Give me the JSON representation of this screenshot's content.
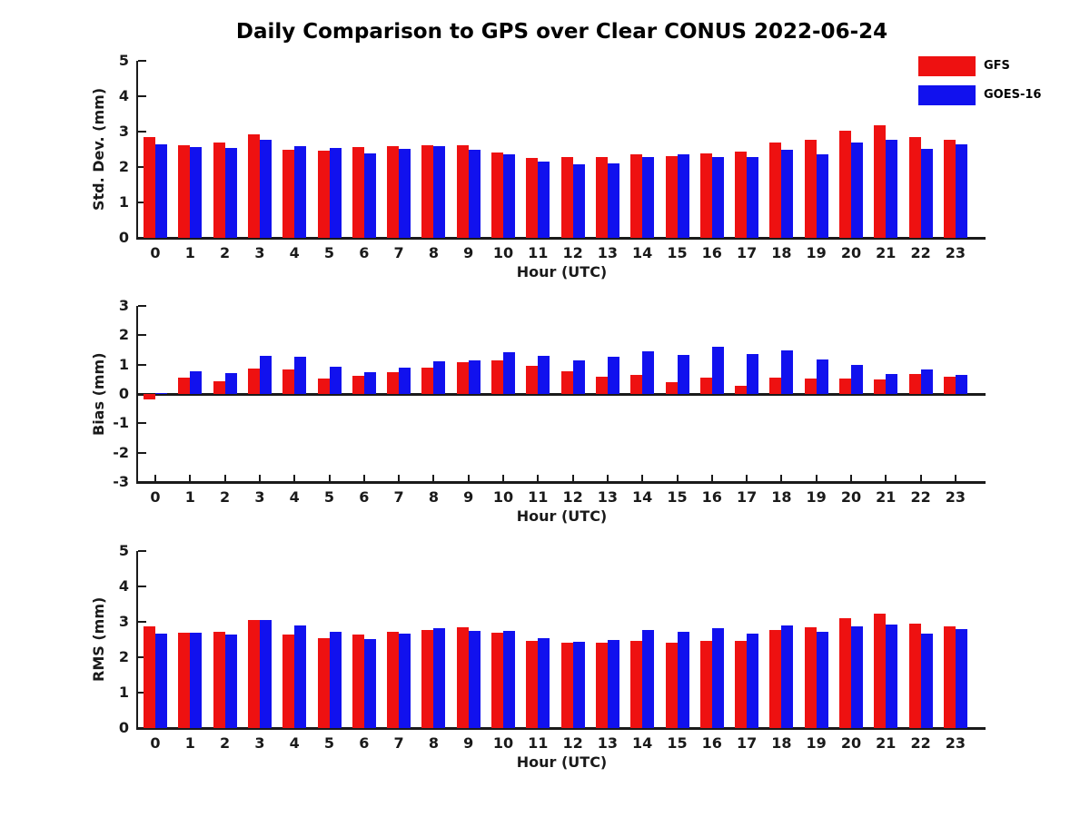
{
  "title": "Daily Comparison to GPS over Clear CONUS 2022-06-24",
  "colors": {
    "gfs": "#ee1111",
    "goes16": "#1111ee",
    "axis": "#1a1a1a"
  },
  "legend": [
    {
      "label": "GFS",
      "series": "gfs"
    },
    {
      "label": "GOES-16",
      "series": "goes16"
    }
  ],
  "chart_data": [
    {
      "type": "bar",
      "title": "",
      "ylabel": "Std. Dev. (mm)",
      "xlabel": "Hour (UTC)",
      "ylim": [
        0,
        5
      ],
      "yticks": [
        0,
        1,
        2,
        3,
        4,
        5
      ],
      "grid": false,
      "legend_position": "top-right",
      "categories": [
        "0",
        "1",
        "2",
        "3",
        "4",
        "5",
        "6",
        "7",
        "8",
        "9",
        "10",
        "11",
        "12",
        "13",
        "14",
        "15",
        "16",
        "17",
        "18",
        "19",
        "20",
        "21",
        "22",
        "23"
      ],
      "series": [
        {
          "name": "GFS",
          "values": [
            2.85,
            2.62,
            2.7,
            2.92,
            2.5,
            2.47,
            2.56,
            2.59,
            2.62,
            2.61,
            2.4,
            2.26,
            2.27,
            2.27,
            2.35,
            2.32,
            2.38,
            2.43,
            2.68,
            2.78,
            3.03,
            3.17,
            2.84,
            2.77
          ]
        },
        {
          "name": "GOES-16",
          "values": [
            2.64,
            2.57,
            2.53,
            2.78,
            2.59,
            2.53,
            2.38,
            2.52,
            2.58,
            2.49,
            2.36,
            2.15,
            2.08,
            2.09,
            2.27,
            2.35,
            2.28,
            2.28,
            2.48,
            2.36,
            2.68,
            2.77,
            2.52,
            2.65
          ]
        }
      ]
    },
    {
      "type": "bar",
      "title": "",
      "ylabel": "Bias (mm)",
      "xlabel": "Hour (UTC)",
      "ylim": [
        -3,
        3
      ],
      "yticks": [
        -3,
        -2,
        -1,
        0,
        1,
        2,
        3
      ],
      "grid": false,
      "categories": [
        "0",
        "1",
        "2",
        "3",
        "4",
        "5",
        "6",
        "7",
        "8",
        "9",
        "10",
        "11",
        "12",
        "13",
        "14",
        "15",
        "16",
        "17",
        "18",
        "19",
        "20",
        "21",
        "22",
        "23"
      ],
      "series": [
        {
          "name": "GFS",
          "values": [
            -0.2,
            0.55,
            0.42,
            0.87,
            0.83,
            0.53,
            0.62,
            0.75,
            0.9,
            1.08,
            1.15,
            0.95,
            0.78,
            0.6,
            0.65,
            0.4,
            0.55,
            0.28,
            0.55,
            0.52,
            0.53,
            0.5,
            0.68,
            0.6
          ]
        },
        {
          "name": "GOES-16",
          "values": [
            0.03,
            0.78,
            0.7,
            1.31,
            1.26,
            0.92,
            0.74,
            0.9,
            1.12,
            1.15,
            1.42,
            1.3,
            1.13,
            1.27,
            1.46,
            1.32,
            1.62,
            1.35,
            1.47,
            1.18,
            0.98,
            0.68,
            0.82,
            0.65
          ]
        }
      ]
    },
    {
      "type": "bar",
      "title": "",
      "ylabel": "RMS (mm)",
      "xlabel": "Hour (UTC)",
      "ylim": [
        0,
        5
      ],
      "yticks": [
        0,
        1,
        2,
        3,
        4,
        5
      ],
      "grid": false,
      "categories": [
        "0",
        "1",
        "2",
        "3",
        "4",
        "5",
        "6",
        "7",
        "8",
        "9",
        "10",
        "11",
        "12",
        "13",
        "14",
        "15",
        "16",
        "17",
        "18",
        "19",
        "20",
        "21",
        "22",
        "23"
      ],
      "series": [
        {
          "name": "GFS",
          "values": [
            2.88,
            2.68,
            2.73,
            3.05,
            2.65,
            2.55,
            2.64,
            2.72,
            2.78,
            2.85,
            2.68,
            2.47,
            2.42,
            2.4,
            2.47,
            2.41,
            2.47,
            2.47,
            2.78,
            2.84,
            3.11,
            3.24,
            2.95,
            2.86
          ]
        },
        {
          "name": "GOES-16",
          "values": [
            2.66,
            2.7,
            2.65,
            3.05,
            2.9,
            2.72,
            2.52,
            2.67,
            2.82,
            2.74,
            2.74,
            2.54,
            2.44,
            2.49,
            2.76,
            2.72,
            2.83,
            2.67,
            2.9,
            2.71,
            2.88,
            2.92,
            2.67,
            2.79
          ]
        }
      ]
    }
  ]
}
